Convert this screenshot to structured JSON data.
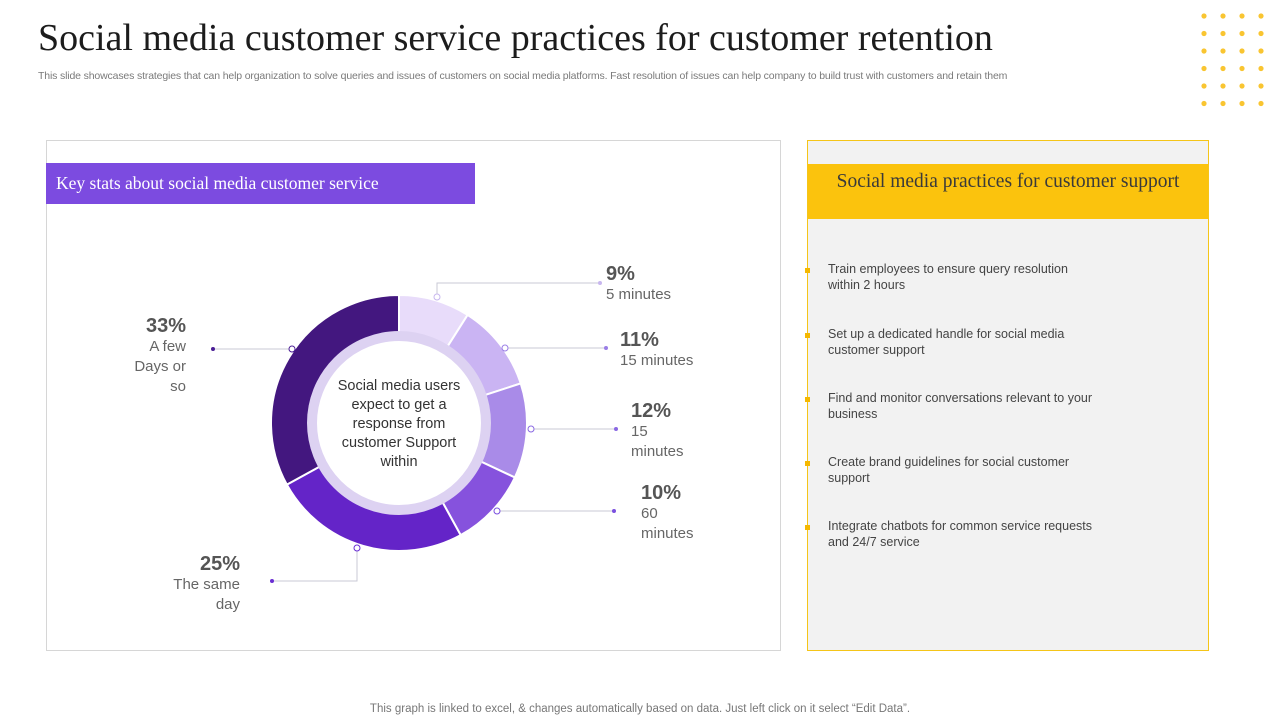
{
  "header": {
    "title": "Social media customer service practices for customer retention",
    "subtitle": "This slide showcases strategies that can help organization to solve queries and issues of customers on social media platforms. Fast resolution of issues can help company to build trust with customers and retain them"
  },
  "left_panel": {
    "heading": "Key stats about social media customer service",
    "center_text": "Social media users expect to get a response from customer Support within"
  },
  "chart_data": {
    "type": "pie",
    "variant": "donut",
    "title": "Social media users expect to get a response from customer Support within",
    "slices": [
      {
        "label": "5 minutes",
        "value": 9,
        "display": "9%",
        "color": "#e8dcfa"
      },
      {
        "label": "15 minutes",
        "value": 11,
        "display": "11%",
        "color": "#cab4f3"
      },
      {
        "label": "15 minutes",
        "value": 12,
        "display": "12%",
        "color": "#a98be8"
      },
      {
        "label": "60 minutes",
        "value": 10,
        "display": "10%",
        "color": "#8652dd"
      },
      {
        "label": "The same day",
        "value": 25,
        "display": "25%",
        "color": "#6424c8"
      },
      {
        "label": "A few Days or so",
        "value": 33,
        "display": "33%",
        "color": "#43177f"
      }
    ]
  },
  "callouts": [
    {
      "pct": "9%",
      "label": "5 minutes"
    },
    {
      "pct": "11%",
      "label": "15 minutes"
    },
    {
      "pct": "12%",
      "label": "15 minutes"
    },
    {
      "pct": "10%",
      "label": "60 minutes"
    },
    {
      "pct": "25%",
      "label": "The same day"
    },
    {
      "pct": "33%",
      "label": "A few Days or so"
    }
  ],
  "right_panel": {
    "heading": "Social media practices for customer support",
    "items": [
      "Train employees to ensure query resolution within 2 hours",
      "Set up a dedicated handle for social media customer support",
      "Find and monitor conversations relevant to your business",
      "Create brand guidelines for social customer support",
      "Integrate chatbots for common service requests and 24/7 service"
    ]
  },
  "footer": "This graph is linked to excel, & changes automatically based on data. Just left click on it select “Edit Data”.",
  "colors": {
    "purple_accent": "#7c4be0",
    "yellow_accent": "#fbc30d",
    "dot_color": "#f9c531"
  }
}
